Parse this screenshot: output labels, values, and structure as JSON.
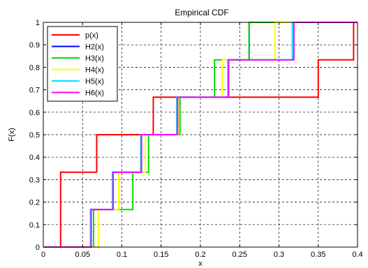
{
  "chart_data": {
    "type": "line",
    "title": "Empirical CDF",
    "xlabel": "x",
    "ylabel": "F(x)",
    "xlim": [
      0,
      0.4
    ],
    "ylim": [
      0,
      1
    ],
    "grid": true,
    "legend_placement": "top-left",
    "x_ticks": [
      "0",
      "0.05",
      "0.1",
      "0.15",
      "0.2",
      "0.25",
      "0.3",
      "0.35",
      "0.4"
    ],
    "y_ticks": [
      "0",
      "0.1",
      "0.2",
      "0.3",
      "0.4",
      "0.5",
      "0.6",
      "0.7",
      "0.8",
      "0.9",
      "1"
    ],
    "series": [
      {
        "name": "p(x)",
        "color": "#ff0000",
        "x": [
          0.022,
          0.068,
          0.14,
          0.35,
          0.395
        ],
        "y": [
          0.333,
          0.5,
          0.667,
          0.833,
          1.0
        ]
      },
      {
        "name": "H2(x)",
        "color": "#0000ff",
        "x": [
          0.06,
          0.088,
          0.124,
          0.17,
          0.235,
          0.262
        ],
        "y": [
          0.167,
          0.333,
          0.5,
          0.667,
          0.833,
          1.0
        ]
      },
      {
        "name": "H3(x)",
        "color": "#00dd00",
        "x": [
          0.064,
          0.088,
          0.114,
          0.134,
          0.174,
          0.218,
          0.262
        ],
        "y": [
          0.167,
          0.167,
          0.333,
          0.5,
          0.667,
          0.833,
          1.0
        ]
      },
      {
        "name": "H4(x)",
        "color": "#ffff00",
        "x": [
          0.07,
          0.096,
          0.13,
          0.172,
          0.228,
          0.295
        ],
        "y": [
          0.167,
          0.333,
          0.5,
          0.667,
          0.833,
          1.0
        ]
      },
      {
        "name": "H5(x)",
        "color": "#00e0ff",
        "x": [
          0.06,
          0.088,
          0.124,
          0.17,
          0.235,
          0.317
        ],
        "y": [
          0.167,
          0.333,
          0.5,
          0.667,
          0.833,
          1.0
        ]
      },
      {
        "name": "H6(x)",
        "color": "#ff00ff",
        "x": [
          0.061,
          0.089,
          0.125,
          0.171,
          0.236,
          0.319
        ],
        "y": [
          0.167,
          0.333,
          0.5,
          0.667,
          0.833,
          1.0
        ]
      }
    ]
  }
}
